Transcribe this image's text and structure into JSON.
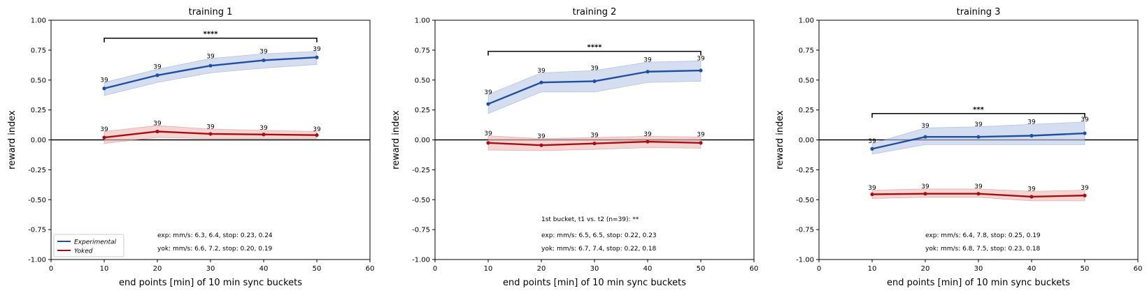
{
  "colors": {
    "experimental": "#1f4fa0",
    "experimental_band": "#b7c8e6",
    "yoked": "#a50f0f",
    "yoked_band": "#efb8b8",
    "axis": "#000000"
  },
  "legend": {
    "placement": "lower-left",
    "panel": 0
  },
  "chart_data": [
    {
      "type": "line",
      "title": "training 1",
      "xlabel": "end points [min] of 10 min sync buckets",
      "ylabel": "reward index",
      "xlim": [
        0,
        60
      ],
      "ylim": [
        -1.0,
        1.0
      ],
      "xticks": [
        "0",
        "10",
        "20",
        "30",
        "40",
        "50",
        "60"
      ],
      "yticks": [
        "-1.00",
        "-0.75",
        "-0.50",
        "-0.25",
        "0.00",
        "0.25",
        "0.50",
        "0.75",
        "1.00"
      ],
      "grid": false,
      "x": [
        10,
        20,
        30,
        40,
        50
      ],
      "series": [
        {
          "name": "Experimental",
          "values": [
            0.43,
            0.54,
            0.62,
            0.665,
            0.69
          ],
          "lower": [
            0.37,
            0.48,
            0.56,
            0.6,
            0.63
          ],
          "upper": [
            0.48,
            0.59,
            0.68,
            0.72,
            0.74
          ],
          "n_labels": [
            "39",
            "39",
            "39",
            "39",
            "39"
          ]
        },
        {
          "name": "Yoked",
          "values": [
            0.02,
            0.07,
            0.05,
            0.045,
            0.04
          ],
          "lower": [
            -0.03,
            0.02,
            0.01,
            0.01,
            0.01
          ],
          "upper": [
            0.07,
            0.12,
            0.09,
            0.08,
            0.07
          ],
          "n_labels": [
            "39",
            "39",
            "39",
            "39",
            "39"
          ]
        }
      ],
      "significance": {
        "label": "****",
        "x_start": 10,
        "x_end": 50,
        "y": 0.85
      },
      "annotations": [
        "exp: mm/s: 6.3, 6.4, stop: 0.23, 0.24",
        "yok: mm/s: 6.6, 7.2, stop: 0.20, 0.19"
      ]
    },
    {
      "type": "line",
      "title": "training 2",
      "xlabel": "end points [min] of 10 min sync buckets",
      "ylabel": "reward index",
      "xlim": [
        0,
        60
      ],
      "ylim": [
        -1.0,
        1.0
      ],
      "xticks": [
        "0",
        "10",
        "20",
        "30",
        "40",
        "50",
        "60"
      ],
      "yticks": [
        "-1.00",
        "-0.75",
        "-0.50",
        "-0.25",
        "0.00",
        "0.25",
        "0.50",
        "0.75",
        "1.00"
      ],
      "grid": false,
      "x": [
        10,
        20,
        30,
        40,
        50
      ],
      "series": [
        {
          "name": "Experimental",
          "values": [
            0.3,
            0.48,
            0.49,
            0.57,
            0.58
          ],
          "lower": [
            0.22,
            0.4,
            0.4,
            0.48,
            0.49
          ],
          "upper": [
            0.38,
            0.56,
            0.58,
            0.65,
            0.66
          ],
          "n_labels": [
            "39",
            "39",
            "39",
            "39",
            "39"
          ]
        },
        {
          "name": "Yoked",
          "values": [
            -0.025,
            -0.045,
            -0.03,
            -0.015,
            -0.025
          ],
          "lower": [
            -0.085,
            -0.09,
            -0.08,
            -0.065,
            -0.07
          ],
          "upper": [
            0.035,
            0.01,
            0.02,
            0.03,
            0.025
          ],
          "n_labels": [
            "39",
            "39",
            "39",
            "39",
            "39"
          ]
        }
      ],
      "significance": {
        "label": "****",
        "x_start": 10,
        "x_end": 50,
        "y": 0.74
      },
      "annotations": [
        "1st bucket, t1 vs. t2 (n=39): **",
        "exp: mm/s: 6.5, 6.5, stop: 0.22, 0.23",
        "yok: mm/s: 6.7, 7.4, stop: 0.22, 0.18"
      ]
    },
    {
      "type": "line",
      "title": "training 3",
      "xlabel": "end points [min] of 10 min sync buckets",
      "ylabel": "reward index",
      "xlim": [
        0,
        60
      ],
      "ylim": [
        -1.0,
        1.0
      ],
      "xticks": [
        "0",
        "10",
        "20",
        "30",
        "40",
        "50",
        "60"
      ],
      "yticks": [
        "-1.00",
        "-0.75",
        "-0.50",
        "-0.25",
        "0.00",
        "0.25",
        "0.50",
        "0.75",
        "1.00"
      ],
      "grid": false,
      "x": [
        10,
        20,
        30,
        40,
        50
      ],
      "series": [
        {
          "name": "Experimental",
          "values": [
            -0.075,
            0.025,
            0.025,
            0.035,
            0.055
          ],
          "lower": [
            -0.12,
            -0.04,
            -0.04,
            -0.04,
            -0.04
          ],
          "upper": [
            -0.03,
            0.1,
            0.11,
            0.13,
            0.15
          ],
          "n_labels": [
            "39",
            "39",
            "39",
            "39",
            "39"
          ]
        },
        {
          "name": "Yoked",
          "values": [
            -0.455,
            -0.45,
            -0.45,
            -0.475,
            -0.465
          ],
          "lower": [
            -0.49,
            -0.48,
            -0.48,
            -0.51,
            -0.51
          ],
          "upper": [
            -0.42,
            -0.41,
            -0.41,
            -0.43,
            -0.42
          ],
          "n_labels": [
            "39",
            "39",
            "39",
            "39",
            "39"
          ]
        }
      ],
      "significance": {
        "label": "***",
        "x_start": 10,
        "x_end": 50,
        "y": 0.22
      },
      "annotations": [
        "exp: mm/s: 6.4, 7.8, stop: 0.25, 0.19",
        "yok: mm/s: 6.8, 7.5, stop: 0.23, 0.18"
      ]
    }
  ]
}
